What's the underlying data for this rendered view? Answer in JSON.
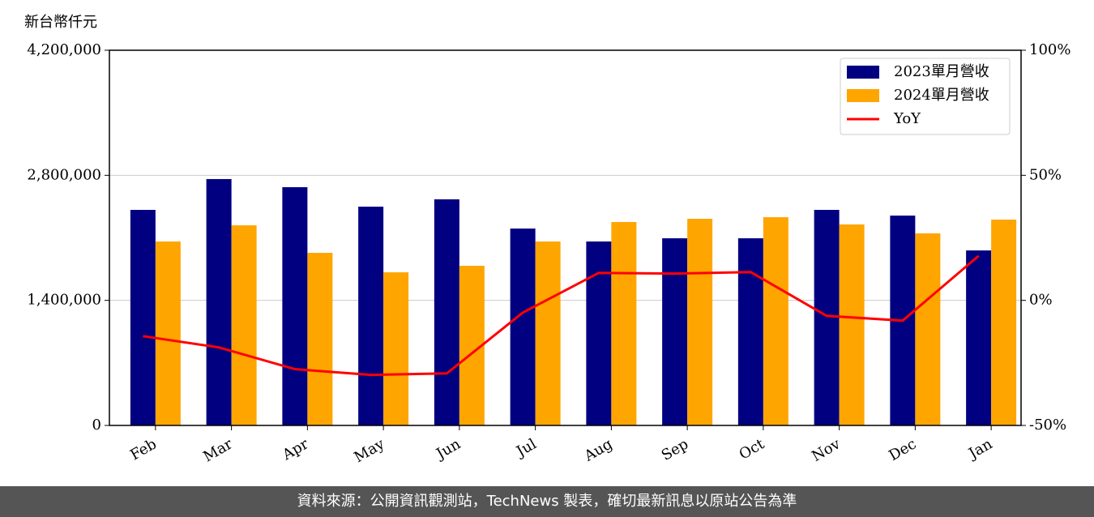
{
  "chart_data": {
    "type": "bar-line",
    "y_label": "新台幣仟元",
    "categories": [
      "Feb",
      "Mar",
      "Apr",
      "May",
      "Jun",
      "Jul",
      "Aug",
      "Sep",
      "Oct",
      "Nov",
      "Dec",
      "Jan"
    ],
    "series": [
      {
        "name": "2023單月營收",
        "color": "#000080",
        "type": "bar",
        "values": [
          2413000,
          2758000,
          2667000,
          2449000,
          2531000,
          2204000,
          2059000,
          2095000,
          2095000,
          2413000,
          2349000,
          1959000
        ]
      },
      {
        "name": "2024單月營收",
        "color": "#ffa500",
        "type": "bar",
        "values": [
          2059000,
          2240000,
          1932000,
          1714000,
          1787000,
          2059000,
          2277000,
          2313000,
          2331000,
          2250000,
          2150000,
          2304000
        ]
      },
      {
        "name": "YoY",
        "color": "#ff0000",
        "type": "line",
        "axis": "y2",
        "values": [
          -14.3,
          -18.8,
          -27.5,
          -29.8,
          -29.2,
          -4.9,
          11.0,
          10.7,
          11.3,
          -6.2,
          -8.1,
          17.8
        ]
      }
    ],
    "ylim": [
      0,
      4200000
    ],
    "yticks": [
      0,
      {
        "value": 1400000,
        "label": "1,400,000"
      },
      {
        "value": 2800000,
        "label": "2,800,000"
      },
      {
        "value": 4200000,
        "label": "4,200,000"
      }
    ],
    "y2lim": [
      -50,
      100
    ],
    "y2ticks": [
      {
        "value": -50,
        "label": "-50%"
      },
      {
        "value": 0,
        "label": "0%"
      },
      {
        "value": 50,
        "label": "50%"
      },
      {
        "value": 100,
        "label": "100%"
      }
    ],
    "grid": true,
    "legend": "upper right"
  },
  "footer": "資料來源：公開資訊觀測站，TechNews 製表，確切最新訊息以原站公告為準"
}
